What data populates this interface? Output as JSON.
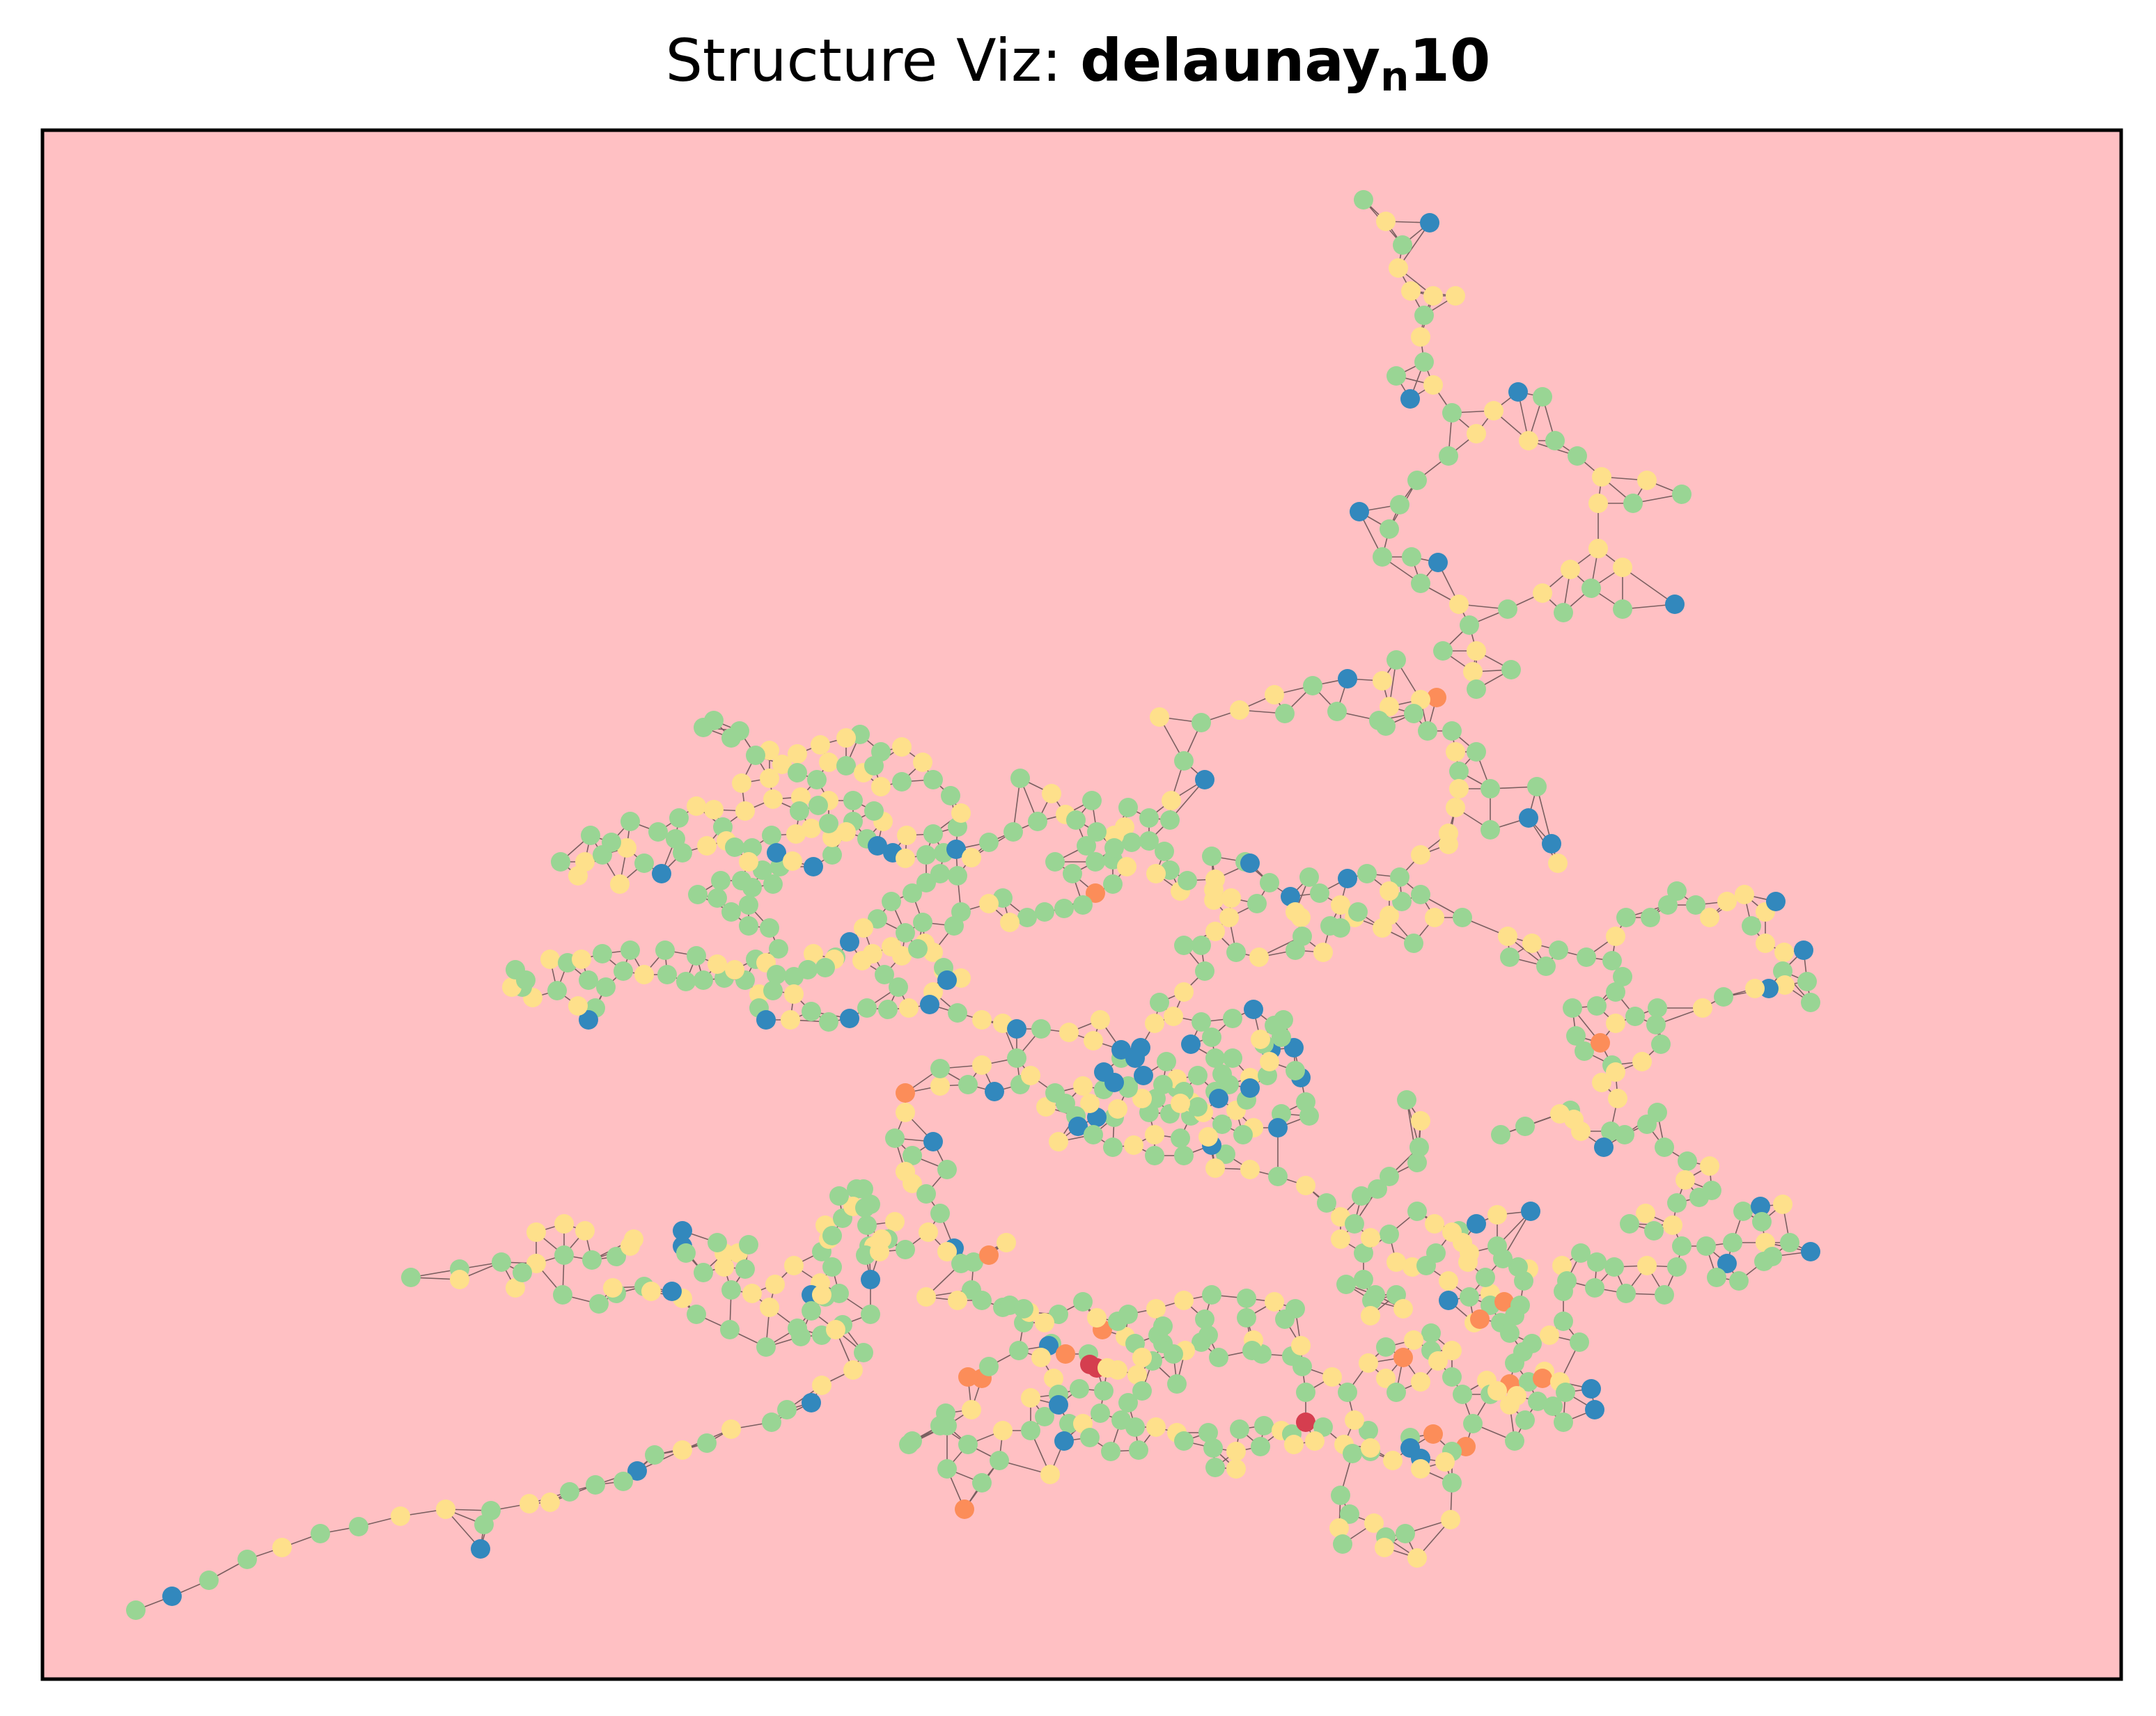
{
  "title": {
    "prefix": "Structure Viz: ",
    "name": "delaunay",
    "subscript": "n",
    "suffix": "10"
  },
  "colors": {
    "background": "#ffc0c3",
    "frame": "#000000",
    "edge": "#7a5f60",
    "light_green": "#99d594",
    "light_yellow": "#fee08b",
    "blue": "#3288bd",
    "orange": "#fc8d59",
    "red": "#d53e4f"
  },
  "node_color_legend_names": [
    "light_green",
    "light_yellow",
    "blue",
    "orange",
    "red"
  ]
}
